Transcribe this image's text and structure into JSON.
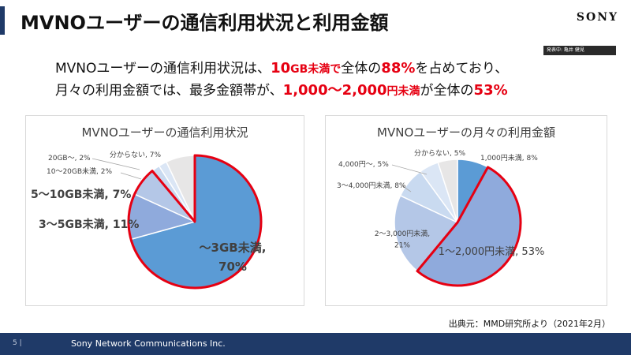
{
  "slide": {
    "title": "MVNOユーザーの通信利用状況と利用金額",
    "brand": "SONY",
    "presenter_badge": "発表中: 亀井 健見",
    "lead": {
      "line1_a": "MVNOユーザーの通信利用状況は、",
      "line1_hl1_num": "10",
      "line1_hl1_unit": "GB未満で",
      "line1_b": "全体の",
      "line1_hl2": "88%",
      "line1_c": "を占めており、",
      "line2_a": "月々の利用金額では、最多金額帯が、",
      "line2_hl1_num": "1,000〜2,000",
      "line2_hl1_unit": "円未満",
      "line2_b": "が全体の",
      "line2_hl2": "53%"
    },
    "source": "出典元：MMD研究所より（2021年2月）",
    "page_number": "5 |",
    "company": "Sony Network Communications Inc."
  },
  "colors": {
    "accent": "#e60012",
    "footer": "#1f3a68",
    "slice_dark": "#5b9bd5",
    "slice_mid": "#8faadc",
    "slice_light": "#b4c7e7",
    "slice_lighter": "#c9daf0",
    "slice_lightest": "#dbe6f5",
    "slice_gray": "#e7e6e6"
  },
  "chart_data": [
    {
      "type": "pie",
      "title": "MVNOユーザーの通信利用状況",
      "labels": [
        "〜3GB未満",
        "3〜5GB未満",
        "5〜10GB未満",
        "10〜20GB未満",
        "20GB〜",
        "分からない"
      ],
      "data_labels": [
        "〜3GB未満,\n70%",
        "3〜5GB未満, 11%",
        "5〜10GB未満, 7%",
        "10〜20GB未満, 2%",
        "20GB〜, 2%",
        "分からない, 7%"
      ],
      "values": [
        70,
        11,
        7,
        2,
        2,
        7
      ],
      "highlighted": [
        "〜3GB未満",
        "3〜5GB未満",
        "5〜10GB未満"
      ]
    },
    {
      "type": "pie",
      "title": "MVNOユーザーの月々の利用金額",
      "labels": [
        "1,000円未満",
        "1〜2,000円未満",
        "2〜3,000円未満",
        "3〜4,000円未満",
        "4,000円〜",
        "分からない"
      ],
      "data_labels": [
        "1,000円未満, 8%",
        "1〜2,000円未満, 53%",
        "2〜3,000円未満,\n21%",
        "3〜4,000円未満, 8%",
        "4,000円〜, 5%",
        "分からない, 5%"
      ],
      "values": [
        8,
        53,
        21,
        8,
        5,
        5
      ],
      "highlighted": [
        "1〜2,000円未満"
      ]
    }
  ]
}
